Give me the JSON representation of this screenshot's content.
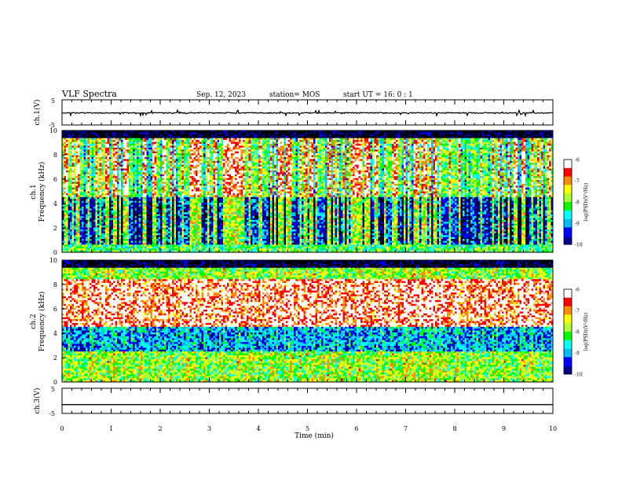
{
  "header": {
    "title": "VLF Spectra",
    "date": "Sep. 12, 2023",
    "station": "station= MOS",
    "start_ut": "start  UT =   16: 0  : 1"
  },
  "chart_data": [
    {
      "type": "line",
      "panel": "waveform-top",
      "ylabel": "ch.1(V)",
      "ylim": [
        -5,
        5
      ],
      "y_ticks": [
        "5",
        "-5"
      ],
      "baseline": -0.2,
      "series_color": "#000000"
    },
    {
      "type": "heatmap",
      "panel": "spectrogram-ch1",
      "ylabel_line1": "ch.1",
      "ylabel_line2": "Frequency (kHz)",
      "ylim": [
        0,
        10
      ],
      "y_ticks": [
        "0",
        "2",
        "4",
        "6",
        "8",
        "10"
      ],
      "colorbar": {
        "label": "log(PSD)(V²/Hz)",
        "range": [
          -10,
          -6
        ],
        "ticks": [
          "-6",
          "-7",
          "-8",
          "-9",
          "-10"
        ]
      }
    },
    {
      "type": "heatmap",
      "panel": "spectrogram-ch2",
      "ylabel_line1": "ch.2",
      "ylabel_line2": "Frequency (kHz)",
      "ylim": [
        0,
        10
      ],
      "y_ticks": [
        "0",
        "2",
        "4",
        "6",
        "8",
        "10"
      ],
      "colorbar": {
        "label": "log(PSD)(V²/Hz)",
        "range": [
          -10,
          -6
        ],
        "ticks": [
          "-6",
          "-7",
          "-8",
          "-9",
          "-10"
        ]
      }
    },
    {
      "type": "line",
      "panel": "waveform-bottom",
      "ylabel": "ch.3(V)",
      "ylim": [
        -5,
        5
      ],
      "y_ticks": [
        "5",
        "-5"
      ],
      "baseline": -1.5,
      "series_color": "#000000"
    }
  ],
  "x_axis": {
    "label": "Time (min)",
    "range": [
      0,
      10
    ],
    "ticks": [
      "0",
      "1",
      "2",
      "3",
      "4",
      "5",
      "6",
      "7",
      "8",
      "9",
      "10"
    ]
  },
  "colors": {
    "scale": [
      "#000000",
      "#00008b",
      "#0000ff",
      "#00bfff",
      "#00ffff",
      "#00ff00",
      "#adff2f",
      "#ffff00",
      "#ff8c00",
      "#ff0000",
      "#ffffff"
    ]
  }
}
